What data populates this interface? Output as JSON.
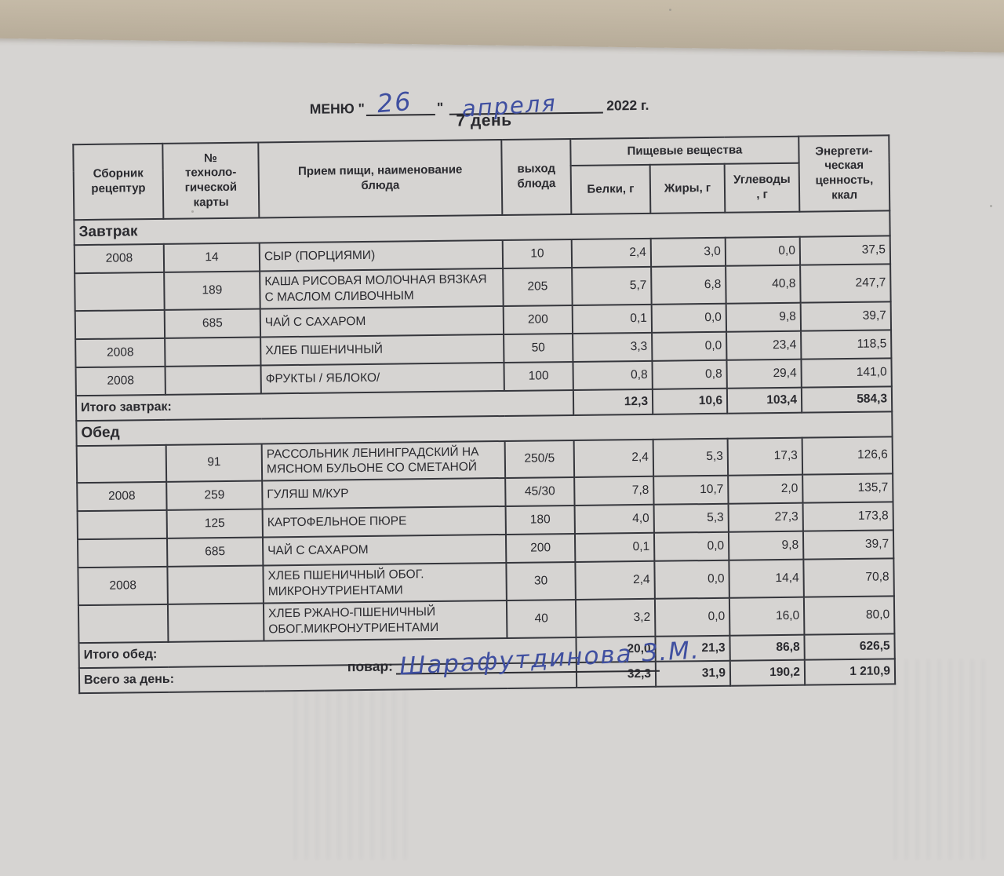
{
  "photo": {
    "desk_color": "#c4b9a6",
    "paper_color": "#d6d4d2",
    "ink_color": "#2a2a2f",
    "pen_ink_color": "#3f4fa0"
  },
  "header": {
    "menu_label": "МЕНЮ \"",
    "handwritten_day": "26",
    "close_quote": "\"",
    "handwritten_month": "апреля",
    "year_label": "2022 г.",
    "subtitle": "7 день"
  },
  "table": {
    "columns": {
      "recipe_book": "Сборник\nрецептур",
      "card_number": "№\nтехноло-\nгической\nкарты",
      "dish": "Прием пищи, наименование\nблюда",
      "yield": "выход\nблюда",
      "nutrients_group": "Пищевые вещества",
      "protein": "Белки, г",
      "fat": "Жиры, г",
      "carbs": "Углеводы\n, г",
      "energy": "Энергети-\nческая\nценность,\nккал"
    },
    "sections": [
      {
        "name": "Завтрак",
        "rows": [
          {
            "book": "2008",
            "card": "14",
            "dish": "СЫР (ПОРЦИЯМИ)",
            "yield": "10",
            "protein": "2,4",
            "fat": "3,0",
            "carbs": "0,0",
            "energy": "37,5"
          },
          {
            "book": "",
            "card": "189",
            "dish": "КАША РИСОВАЯ МОЛОЧНАЯ ВЯЗКАЯ С МАСЛОМ СЛИВОЧНЫМ",
            "yield": "205",
            "protein": "5,7",
            "fat": "6,8",
            "carbs": "40,8",
            "energy": "247,7"
          },
          {
            "book": "",
            "card": "685",
            "dish": "ЧАЙ С САХАРОМ",
            "yield": "200",
            "protein": "0,1",
            "fat": "0,0",
            "carbs": "9,8",
            "energy": "39,7"
          },
          {
            "book": "2008",
            "card": "",
            "dish": "ХЛЕБ ПШЕНИЧНЫЙ",
            "yield": "50",
            "protein": "3,3",
            "fat": "0,0",
            "carbs": "23,4",
            "energy": "118,5"
          },
          {
            "book": "2008",
            "card": "",
            "dish": "ФРУКТЫ / ЯБЛОКО/",
            "yield": "100",
            "protein": "0,8",
            "fat": "0,8",
            "carbs": "29,4",
            "energy": "141,0"
          }
        ],
        "total": {
          "label": "Итого завтрак:",
          "protein": "12,3",
          "fat": "10,6",
          "carbs": "103,4",
          "energy": "584,3"
        }
      },
      {
        "name": "Обед",
        "rows": [
          {
            "book": "",
            "card": "91",
            "dish": "РАССОЛЬНИК ЛЕНИНГРАДСКИЙ НА МЯСНОМ БУЛЬОНЕ СО СМЕТАНОЙ",
            "yield": "250/5",
            "protein": "2,4",
            "fat": "5,3",
            "carbs": "17,3",
            "energy": "126,6"
          },
          {
            "book": "2008",
            "card": "259",
            "dish": "ГУЛЯШ М/КУР",
            "yield": "45/30",
            "protein": "7,8",
            "fat": "10,7",
            "carbs": "2,0",
            "energy": "135,7"
          },
          {
            "book": "",
            "card": "125",
            "dish": "КАРТОФЕЛЬНОЕ ПЮРЕ",
            "yield": "180",
            "protein": "4,0",
            "fat": "5,3",
            "carbs": "27,3",
            "energy": "173,8"
          },
          {
            "book": "",
            "card": "685",
            "dish": "ЧАЙ С САХАРОМ",
            "yield": "200",
            "protein": "0,1",
            "fat": "0,0",
            "carbs": "9,8",
            "energy": "39,7"
          },
          {
            "book": "2008",
            "card": "",
            "dish": "ХЛЕБ ПШЕНИЧНЫЙ ОБОГ. МИКРОНУТРИЕНТАМИ",
            "yield": "30",
            "protein": "2,4",
            "fat": "0,0",
            "carbs": "14,4",
            "energy": "70,8"
          },
          {
            "book": "",
            "card": "",
            "dish": "ХЛЕБ РЖАНО-ПШЕНИЧНЫЙ ОБОГ.МИКРОНУТРИЕНТАМИ",
            "yield": "40",
            "protein": "3,2",
            "fat": "0,0",
            "carbs": "16,0",
            "energy": "80,0"
          }
        ],
        "total": {
          "label": "Итого обед:",
          "protein": "20,0",
          "fat": "21,3",
          "carbs": "86,8",
          "energy": "626,5"
        }
      }
    ],
    "grand_total": {
      "label": "Всего за день:",
      "protein": "32,3",
      "fat": "31,9",
      "carbs": "190,2",
      "energy": "1 210,9"
    }
  },
  "footer": {
    "cook_label": "повар:",
    "signature": "Шарафутдинова З.М."
  }
}
